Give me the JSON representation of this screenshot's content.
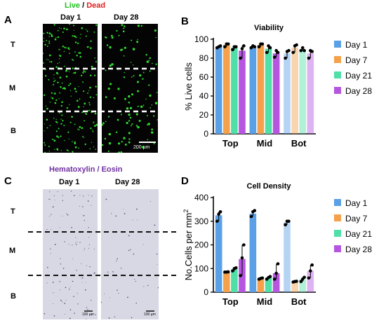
{
  "panel_a": {
    "letter": "A",
    "title_live": "Live",
    "title_sep": " / ",
    "title_dead": "Dead",
    "title_live_color": "#20c020",
    "title_dead_color": "#e02020",
    "col_day1": "Day 1",
    "col_day28": "Day 28",
    "rows": [
      "T",
      "M",
      "B"
    ],
    "scalebar": "200 µm"
  },
  "panel_c": {
    "letter": "C",
    "title": "Hematoxylin / Eosin",
    "title_color": "#7030a0",
    "col_day1": "Day 1",
    "col_day28": "Day 28",
    "rows": [
      "T",
      "M",
      "B"
    ],
    "scalebar_left": "100 µm",
    "scalebar_right": "100 µm"
  },
  "panel_b": {
    "letter": "B"
  },
  "panel_d": {
    "letter": "D"
  },
  "chart_data": [
    {
      "type": "bar",
      "title": "Viability",
      "ylabel": "% Live cells",
      "xlabel": "",
      "categories": [
        "Top",
        "Mid",
        "Bot"
      ],
      "ylim": [
        0,
        100
      ],
      "yticks": [
        0,
        20,
        40,
        60,
        80,
        100
      ],
      "grid": false,
      "legend": "right",
      "series": [
        {
          "name": "Day 1",
          "values": [
            92,
            92,
            85
          ],
          "color": "#5aa0e6",
          "points": [
            [
              91,
              92,
              93
            ],
            [
              91,
              93,
              92
            ],
            [
              80,
              87,
              88
            ]
          ]
        },
        {
          "name": "Day 7",
          "values": [
            94,
            94,
            91
          ],
          "color": "#f5a04a",
          "points": [
            [
              92,
              95,
              95
            ],
            [
              92,
              95,
              95
            ],
            [
              86,
              93,
              94
            ]
          ]
        },
        {
          "name": "Day 21",
          "values": [
            91,
            90,
            89
          ],
          "color": "#4fe0a8",
          "points": [
            [
              89,
              92,
              92
            ],
            [
              86,
              93,
              91
            ],
            [
              88,
              91,
              88
            ]
          ]
        },
        {
          "name": "Day 28",
          "values": [
            88,
            85,
            85
          ],
          "color": "#b656e0",
          "points": [
            [
              80,
              90,
              93
            ],
            [
              81,
              88,
              86
            ],
            [
              80,
              88,
              87
            ]
          ]
        }
      ]
    },
    {
      "type": "bar",
      "title": "Cell Density",
      "ylabel": "No.Cells per mm",
      "ylabel_sup": "2",
      "xlabel": "",
      "categories": [
        "Top",
        "Mid",
        "Bot"
      ],
      "ylim": [
        0,
        400
      ],
      "yticks": [
        0,
        100,
        200,
        300,
        400
      ],
      "grid": false,
      "legend": "right",
      "series": [
        {
          "name": "Day 1",
          "values": [
            325,
            332,
            295
          ],
          "color": "#5aa0e6",
          "points": [
            [
              300,
              330,
              340
            ],
            [
              320,
              340,
              345
            ],
            [
              285,
              300,
              300
            ]
          ]
        },
        {
          "name": "Day 7",
          "values": [
            85,
            58,
            45
          ],
          "color": "#f5a04a",
          "points": [
            [
              85,
              85,
              86
            ],
            [
              55,
              58,
              60
            ],
            [
              43,
              45,
              46
            ]
          ]
        },
        {
          "name": "Day 21",
          "values": [
            97,
            62,
            55
          ],
          "color": "#4fe0a8",
          "points": [
            [
              90,
              100,
              103
            ],
            [
              55,
              62,
              66
            ],
            [
              45,
              55,
              63
            ]
          ]
        },
        {
          "name": "Day 28",
          "values": [
            140,
            80,
            90
          ],
          "color": "#b656e0",
          "points": [
            [
              70,
              145,
              200
            ],
            [
              55,
              80,
              120
            ],
            [
              60,
              90,
              115
            ]
          ]
        }
      ]
    }
  ]
}
